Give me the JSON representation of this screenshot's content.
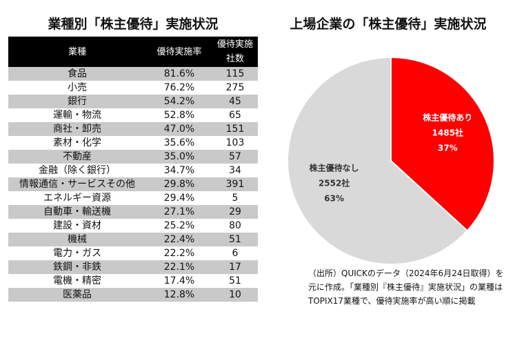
{
  "left_title": "業種別「株主優待」実施状況",
  "right_title": "上場企業の「株主優待」実施状況",
  "table": {
    "headers": {
      "sector": "業種",
      "rate": "優待実施率",
      "count_line1": "優待実施",
      "count_line2": "社数"
    },
    "rows": [
      {
        "sector": "食品",
        "rate": "81.6%",
        "count": "115"
      },
      {
        "sector": "小売",
        "rate": "76.2%",
        "count": "275"
      },
      {
        "sector": "銀行",
        "rate": "54.2%",
        "count": "45"
      },
      {
        "sector": "運輸・物流",
        "rate": "52.8%",
        "count": "65"
      },
      {
        "sector": "商社・卸売",
        "rate": "47.0%",
        "count": "151"
      },
      {
        "sector": "素材・化学",
        "rate": "35.6%",
        "count": "103"
      },
      {
        "sector": "不動産",
        "rate": "35.0%",
        "count": "57"
      },
      {
        "sector": "金融（除く銀行）",
        "rate": "34.7%",
        "count": "34"
      },
      {
        "sector": "情報通信・サービスその他",
        "rate": "29.8%",
        "count": "391"
      },
      {
        "sector": "エネルギー資源",
        "rate": "29.4%",
        "count": "5"
      },
      {
        "sector": "自動車・輸送機",
        "rate": "27.1%",
        "count": "29"
      },
      {
        "sector": "建設・資材",
        "rate": "25.2%",
        "count": "80"
      },
      {
        "sector": "機械",
        "rate": "22.4%",
        "count": "51"
      },
      {
        "sector": "電力・ガス",
        "rate": "22.2%",
        "count": "6"
      },
      {
        "sector": "鉄鋼・非鉄",
        "rate": "22.1%",
        "count": "17"
      },
      {
        "sector": "電機・精密",
        "rate": "17.4%",
        "count": "51"
      },
      {
        "sector": "医薬品",
        "rate": "12.8%",
        "count": "10"
      }
    ]
  },
  "chart_data": {
    "type": "pie",
    "title": "上場企業の「株主優待」実施状況",
    "slices": [
      {
        "label": "株主優待あり",
        "count_label": "1485社",
        "percent_label": "37%",
        "value": 1485,
        "percent": 37,
        "color": "#ff0000",
        "text_color": "#ffffff"
      },
      {
        "label": "株主優待なし",
        "count_label": "2552社",
        "percent_label": "63%",
        "value": 2552,
        "percent": 63,
        "color": "#d9d9d9",
        "text_color": "#333333"
      }
    ]
  },
  "source_note": "（出所）QUICKのデータ（2024年6月24日取得）を元に作成。「業種別『株主優待』実施状況」の業種はTOPIX17業種で、優待実施率が高い順に掲載"
}
